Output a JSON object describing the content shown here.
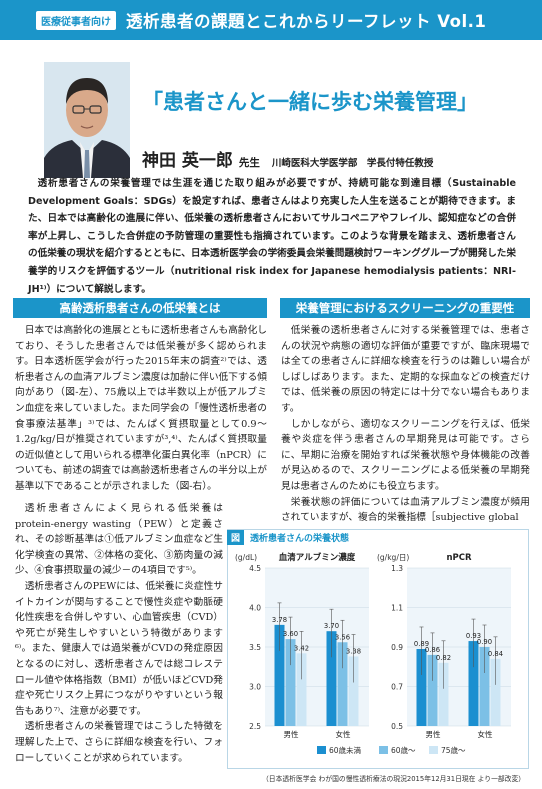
{
  "header": {
    "tag": "医療従事者向け",
    "title": "透析患者の課題とこれからリーフレット Vol.1"
  },
  "headline": "「患者さんと一緒に歩む栄養管理」",
  "author": {
    "name": "神田 英一郎",
    "honorific": "先生",
    "affiliation": "川崎医科大学医学部　学長付特任教授"
  },
  "intro": "透析患者さんの栄養管理では生涯を通じた取り組みが必要ですが、持続可能な到達目標（Sustainable Development Goals：SDGs）を設定すれば、患者さんはより充実した人生を送ることが期待できます。また、日本では高齢化の進展に伴い、低栄養の透析患者さんにおいてサルコペニアやフレイル、認知症などの合併率が上昇し、こうした合併症の予防管理の重要性も指摘されています。このような背景を踏まえ、透析患者さんの低栄養の現状を紹介するとともに、日本透析医学会の学術委員会栄養問題検討ワーキンググループが開発した栄養学的リスクを評価するツール（nutritional risk index for Japanese hemodialysis patients：NRI-JH¹⁾）について解説します。",
  "left": {
    "heading": "高齢透析患者さんの低栄養とは",
    "p1": "日本では高齢化の進展とともに透析患者さんも高齢化しており、そうした患者さんでは低栄養が多く認められます。日本透析医学会が行った2015年末の調査²⁾では、透析患者さんの血清アルブミン濃度は加齢に伴い低下する傾向があり（図-左）、75歳以上では半数以上が低アルブミン血症を来していました。また同学会の「慢性透析患者の食事療法基準」³⁾では、たんぱく質摂取量として0.9〜1.2g/kg/日が推奨されていますが³,⁴⁾、たんぱく質摂取量の近似値として用いられる標準化蛋白異化率（nPCR）についても、前述の調査では高齢透析患者さんの半分以上が基準以下であることが示されました（図-右）。",
    "p2a": "透析患者さんによく見られる低栄養はprotein-energy wasting（PEW）と定義され、その診断基準は①低アルブミン血症など生化学検査の異常、②体格の変化、③筋肉量の減少、④食事摂取量の減少－の4項目です⁵⁾。",
    "p3": "透析患者さんのPEWには、低栄養に炎症性サイトカインが関与することで慢性炎症や動脈硬化性疾患を合併しやすい、心血管疾患（CVD）や死亡が発生しやすいという特徴があります⁶⁾。また、健康人では過栄養がCVDの発症原因となるのに対し、透析患者さんでは総コレステロール値や体格指数（BMI）が低いほどCVD発症や死亡リスク上昇につながりやすいという報告もあり⁷⁾、注意が必要です。",
    "p4": "透析患者さんの栄養管理ではこうした特徴を理解した上で、さらに詳細な検査を行い、フォローしていくことが求められています。"
  },
  "right": {
    "heading": "栄養管理におけるスクリーニングの重要性",
    "p1": "低栄養の透析患者さんに対する栄養管理では、患者さんの状況や病態の適切な評価が重要ですが、臨床現場では全ての患者さんに詳細な検査を行うのは難しい場合がしばしばあります。また、定期的な採血などの検査だけでは、低栄養の原因の特定には十分でない場合もあります。",
    "p2": "しかしながら、適切なスクリーニングを行えば、低栄養や炎症を伴う患者さんの早期発見は可能です。さらに、早期に治療を開始すれば栄養状態や身体機能の改善が見込めるので、スクリーニングによる低栄養の早期発見は患者さんのためにも役立ちます。",
    "p3": "栄養状態の評価については血清アルブミン濃度が頻用されていますが、複合的栄養指標［subjective global"
  },
  "figure": {
    "tag": "図",
    "title": "透析患者さんの栄養状態",
    "source": "（日本透析医学会 わが国の慢性透析療法の現況2015年12月31日現在 より一部改変）"
  },
  "chart_data": [
    {
      "type": "bar",
      "title": "血清アルブミン濃度",
      "ylabel": "(g/dL)",
      "ylim": [
        2.5,
        4.5
      ],
      "yticks": [
        "2.5",
        "3.0",
        "3.5",
        "4.0",
        "4.5"
      ],
      "categories": [
        "男性",
        "女性"
      ],
      "series": [
        {
          "name": "60歳未満",
          "values": [
            3.78,
            3.7
          ]
        },
        {
          "name": "60歳〜",
          "values": [
            3.6,
            3.56
          ]
        },
        {
          "name": "75歳〜",
          "values": [
            3.42,
            3.38
          ]
        }
      ]
    },
    {
      "type": "bar",
      "title": "nPCR",
      "ylabel": "(g/kg/日)",
      "ylim": [
        0.5,
        1.3
      ],
      "yticks": [
        "0.5",
        "0.7",
        "0.9",
        "1.1",
        "1.3"
      ],
      "categories": [
        "男性",
        "女性"
      ],
      "series": [
        {
          "name": "60歳未満",
          "values": [
            0.89,
            0.93
          ]
        },
        {
          "name": "60歳〜",
          "values": [
            0.86,
            0.9
          ]
        },
        {
          "name": "75歳〜",
          "values": [
            0.82,
            0.84
          ]
        }
      ]
    }
  ],
  "legend": [
    "60歳未満",
    "60歳〜",
    "75歳〜"
  ],
  "colors": {
    "s0": "#1b8fd0",
    "s1": "#7cc0e6",
    "s2": "#cde6f5"
  }
}
